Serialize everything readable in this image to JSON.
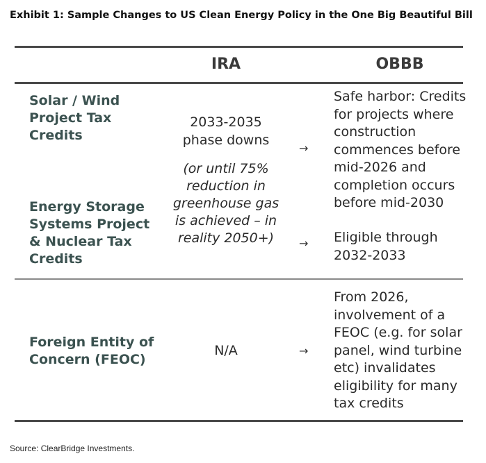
{
  "title": "Exhibit 1: Sample Changes to US Clean Energy Policy in the One Big Beautiful Bill",
  "table": {
    "headers": {
      "col1": "",
      "col2": "IRA",
      "col3": "OBBB"
    },
    "rows": [
      {
        "label_a": "Solar / Wind\nProject Tax\nCredits",
        "label_b": "Energy Storage\nSystems Project\n& Nuclear Tax\nCredits",
        "ira_main": "2033-2035\nphase downs",
        "ira_note": "(or until 75%\nreduction in\ngreenhouse gas\nis achieved – in\nreality 2050+)",
        "obbb_a": "Safe harbor: Credits\nfor projects where\nconstruction\ncommences before\nmid-2026 and\ncompletion occurs\nbefore mid-2030",
        "obbb_b": "Eligible through\n2032-2033"
      },
      {
        "label": "Foreign Entity of\nConcern (FEOC)",
        "ira": "N/A",
        "obbb": "From 2026,\ninvolvement of a\nFEOC (e.g. for solar\npanel, wind turbine\netc) invalidates\neligibility for many\ntax credits"
      }
    ],
    "arrow_glyph": "→"
  },
  "source": "Source: ClearBridge Investments."
}
